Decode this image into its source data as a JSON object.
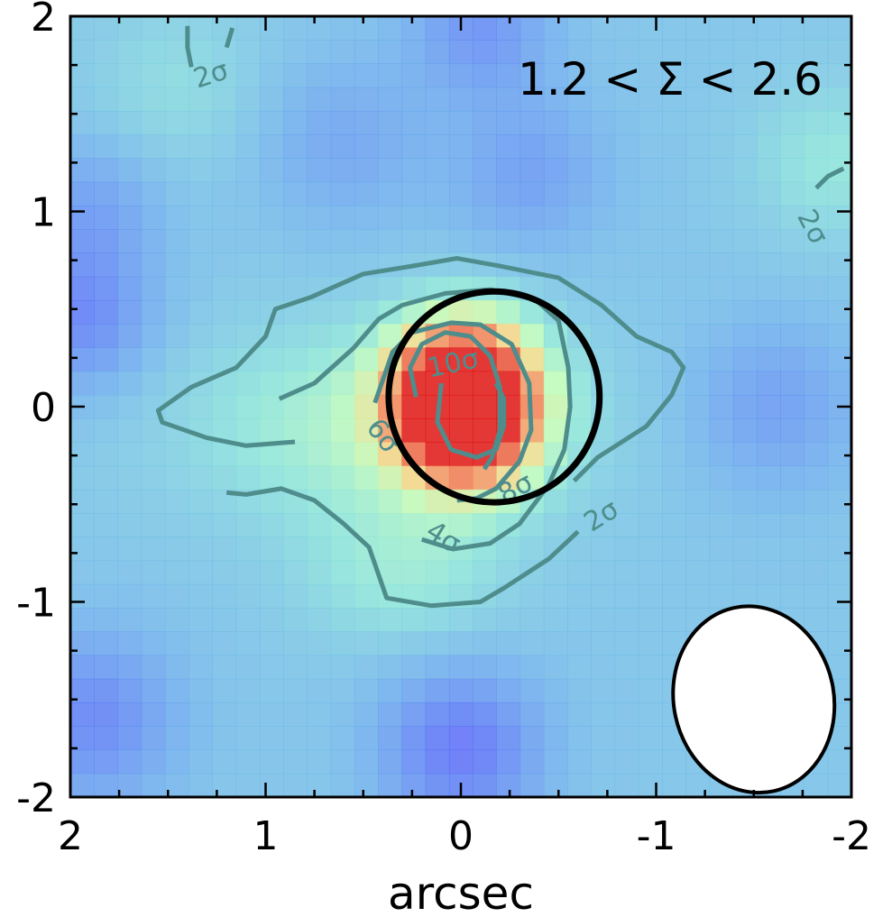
{
  "chart_data": {
    "type": "heatmap",
    "title": "",
    "annotation": "1.2 < Σ < 2.6",
    "xlabel": "arcsec",
    "ylabel": "",
    "xlim": [
      2,
      -2
    ],
    "ylim": [
      -2,
      2
    ],
    "x_ticks": [
      "2",
      "1",
      "0",
      "-1",
      "-2"
    ],
    "y_ticks": [
      "2",
      "1",
      "0",
      "-1",
      "-2"
    ],
    "grid": false,
    "legend": "none",
    "colormap": "rainbow",
    "aperture_circle": {
      "center": [
        -0.17,
        0.05
      ],
      "radius": 0.54,
      "color": "#000000"
    },
    "beam_ellipse": {
      "center": [
        -1.5,
        -1.5
      ],
      "major": 0.96,
      "minor": 0.82,
      "color": "#ffffff"
    },
    "contour_labels": [
      "2σ",
      "2σ",
      "2σ",
      "4σ",
      "6σ",
      "8σ",
      "10σ"
    ],
    "contour_color": "#4e8d8c",
    "contours": [
      {
        "level": "2σ",
        "points": [
          [
            0.85,
            -0.18
          ],
          [
            1.1,
            -0.2
          ],
          [
            1.3,
            -0.16
          ],
          [
            1.53,
            -0.08
          ],
          [
            1.55,
            -0.02
          ],
          [
            1.38,
            0.1
          ],
          [
            1.15,
            0.2
          ],
          [
            1.0,
            0.36
          ],
          [
            0.95,
            0.5
          ],
          [
            0.77,
            0.56
          ],
          [
            0.5,
            0.68
          ],
          [
            0.25,
            0.72
          ],
          [
            0.02,
            0.76
          ],
          [
            -0.2,
            0.72
          ],
          [
            -0.5,
            0.66
          ],
          [
            -0.72,
            0.52
          ],
          [
            -0.9,
            0.36
          ],
          [
            -1.08,
            0.28
          ],
          [
            -1.14,
            0.2
          ],
          [
            -1.08,
            0.06
          ],
          [
            -0.95,
            -0.1
          ],
          [
            -0.7,
            -0.26
          ],
          [
            -0.58,
            -0.38
          ]
        ]
      },
      {
        "level": "2σ",
        "points": [
          [
            -0.6,
            -0.64
          ],
          [
            -0.45,
            -0.78
          ],
          [
            -0.22,
            -0.93
          ],
          [
            -0.1,
            -1.0
          ],
          [
            0.15,
            -1.02
          ],
          [
            0.38,
            -0.98
          ],
          [
            0.47,
            -0.72
          ],
          [
            0.6,
            -0.6
          ],
          [
            0.75,
            -0.48
          ],
          [
            0.92,
            -0.42
          ],
          [
            1.1,
            -0.45
          ],
          [
            1.2,
            -0.44
          ]
        ]
      },
      {
        "level": "4σ",
        "points": [
          [
            0.93,
            0.04
          ],
          [
            0.75,
            0.12
          ],
          [
            0.55,
            0.3
          ],
          [
            0.42,
            0.45
          ],
          [
            0.3,
            0.52
          ],
          [
            0.08,
            0.58
          ],
          [
            -0.15,
            0.6
          ],
          [
            -0.38,
            0.55
          ],
          [
            -0.5,
            0.44
          ],
          [
            -0.55,
            0.2
          ],
          [
            -0.56,
            0.0
          ],
          [
            -0.53,
            -0.22
          ],
          [
            -0.45,
            -0.4
          ],
          [
            -0.3,
            -0.6
          ],
          [
            -0.15,
            -0.7
          ],
          [
            0.04,
            -0.73
          ],
          [
            0.2,
            -0.68
          ]
        ]
      },
      {
        "level": "6σ",
        "points": [
          [
            0.44,
            0.02
          ],
          [
            0.35,
            0.28
          ],
          [
            0.25,
            0.38
          ],
          [
            0.05,
            0.43
          ],
          [
            -0.1,
            0.42
          ],
          [
            -0.26,
            0.32
          ],
          [
            -0.35,
            0.12
          ],
          [
            -0.36,
            -0.12
          ],
          [
            -0.3,
            -0.28
          ],
          [
            -0.18,
            -0.42
          ],
          [
            -0.08,
            -0.47
          ],
          [
            0.02,
            -0.48
          ]
        ]
      },
      {
        "level": "8σ",
        "points": [
          [
            0.23,
            0.05
          ],
          [
            0.26,
            0.2
          ],
          [
            0.2,
            0.32
          ],
          [
            0.08,
            0.38
          ],
          [
            -0.05,
            0.36
          ],
          [
            -0.15,
            0.26
          ],
          [
            -0.2,
            0.1
          ],
          [
            -0.2,
            -0.12
          ],
          [
            -0.16,
            -0.26
          ],
          [
            -0.12,
            -0.32
          ]
        ]
      },
      {
        "level": "10σ",
        "points": [
          [
            0.1,
            0.12
          ],
          [
            0.12,
            -0.08
          ],
          [
            0.05,
            -0.22
          ],
          [
            -0.08,
            -0.26
          ],
          [
            -0.18,
            -0.22
          ],
          [
            -0.22,
            -0.1
          ],
          [
            -0.22,
            0.04
          ],
          [
            -0.18,
            0.12
          ]
        ]
      },
      {
        "level": "2σ",
        "points": [
          [
            1.38,
            1.74
          ],
          [
            1.4,
            1.84
          ],
          [
            1.4,
            1.95
          ]
        ]
      },
      {
        "level": "2σ",
        "points": [
          [
            1.2,
            1.84
          ],
          [
            1.17,
            1.94
          ]
        ]
      },
      {
        "level": "2σ",
        "points": [
          [
            -1.82,
            1.12
          ],
          [
            -1.88,
            1.18
          ],
          [
            -1.96,
            1.22
          ]
        ]
      }
    ]
  }
}
